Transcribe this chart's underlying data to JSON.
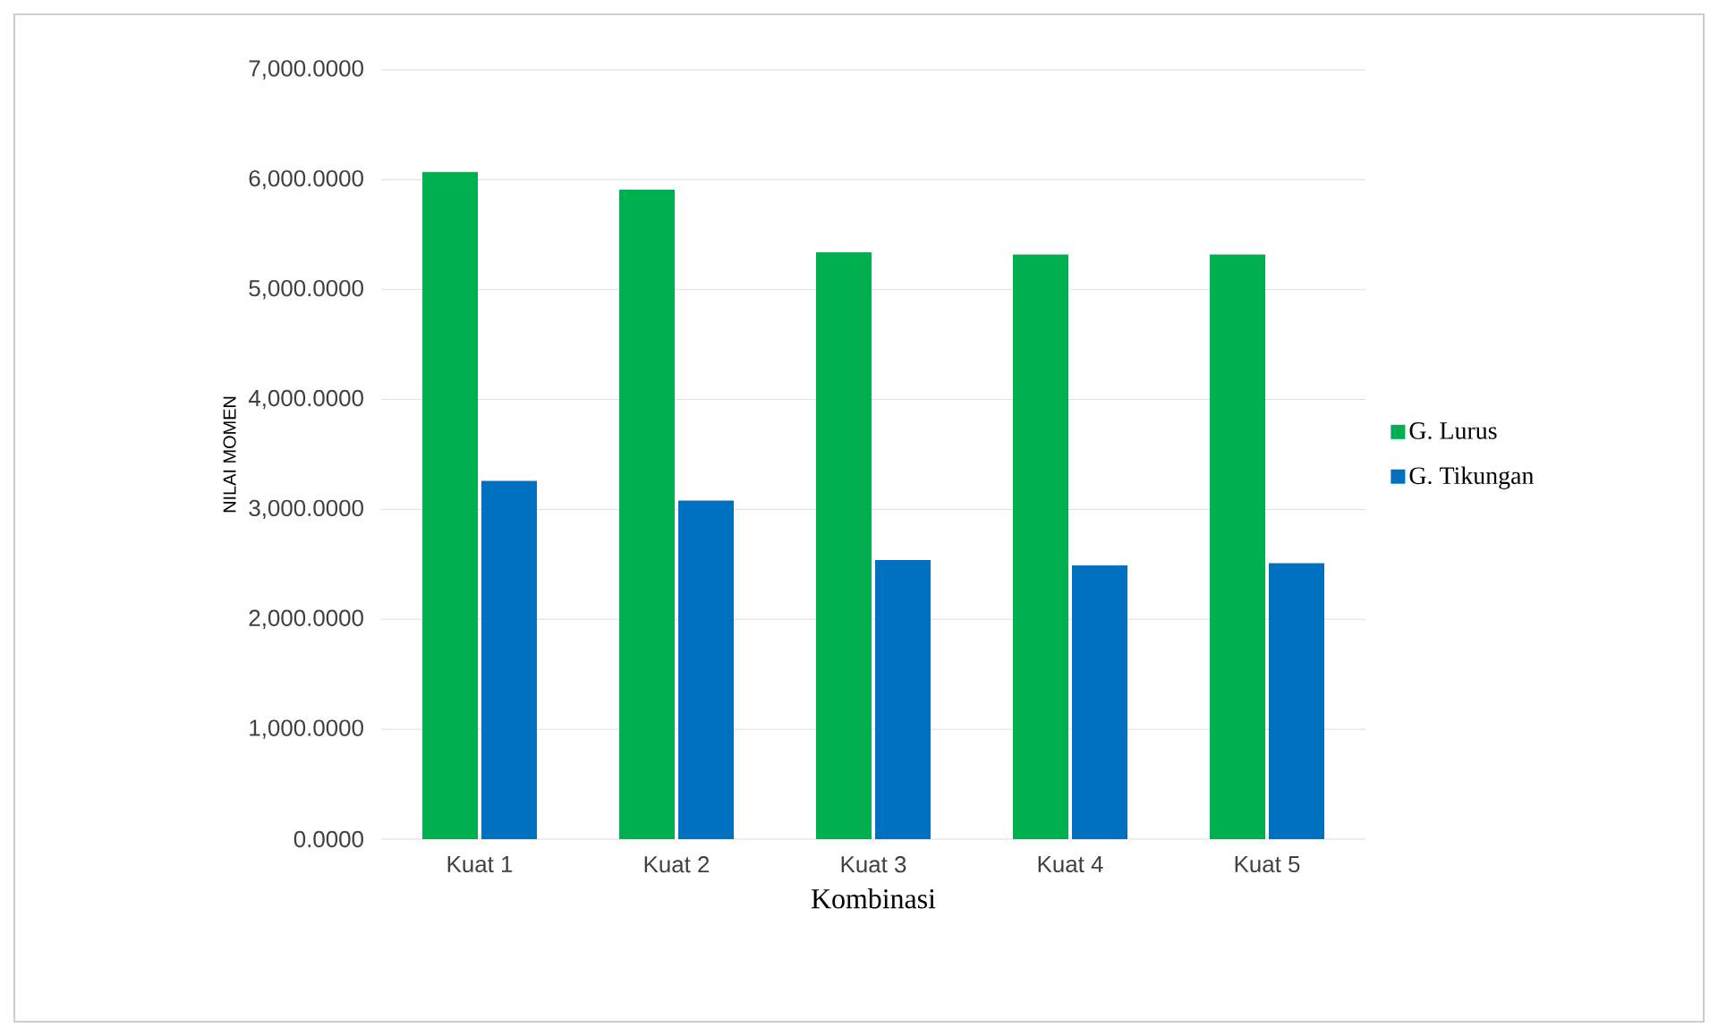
{
  "chart_data": {
    "type": "bar",
    "xlabel": "Kombinasi",
    "ylabel": "NILAI MOMEN",
    "categories": [
      "Kuat 1",
      "Kuat 2",
      "Kuat 3",
      "Kuat 4",
      "Kuat 5"
    ],
    "series": [
      {
        "name": "G. Lurus",
        "color": "#00b050",
        "values": [
          6070,
          5910,
          5340,
          5320,
          5320
        ]
      },
      {
        "name": "G. Tikungan",
        "color": "#0070c0",
        "values": [
          3260,
          3080,
          2540,
          2490,
          2510
        ]
      }
    ],
    "ylim": [
      0,
      7000
    ],
    "yticks": [
      {
        "value": 0,
        "label": "0.0000"
      },
      {
        "value": 1000,
        "label": "1,000.0000"
      },
      {
        "value": 2000,
        "label": "2,000.0000"
      },
      {
        "value": 3000,
        "label": "3,000.0000"
      },
      {
        "value": 4000,
        "label": "4,000.0000"
      },
      {
        "value": 5000,
        "label": "5,000.0000"
      },
      {
        "value": 6000,
        "label": "6,000.0000"
      },
      {
        "value": 7000,
        "label": "7,000.0000"
      }
    ],
    "grid": "y",
    "legend": "right"
  }
}
